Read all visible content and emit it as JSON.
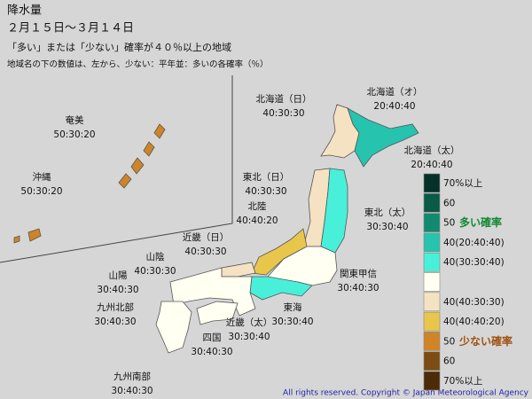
{
  "header": {
    "title": "降水量",
    "period": "２月１５日〜３月１４日",
    "subtitle": "「多い」または「少ない」確率が４０％以上の地域",
    "note": "地域名の下の数値は、左から、少ない：平年並：多いの各確率（％）"
  },
  "regions": [
    {
      "name": "北海道（日）",
      "probs": "40:30:30"
    },
    {
      "name": "北海道（オ）",
      "probs": "20:40:40"
    },
    {
      "name": "北海道（太）",
      "probs": "20:40:40"
    },
    {
      "name": "東北（日）",
      "probs": "40:30:30"
    },
    {
      "name": "北陸",
      "probs": "40:40:20"
    },
    {
      "name": "東北（太）",
      "probs": "30:30:40"
    },
    {
      "name": "近畿（日）",
      "probs": "40:30:30"
    },
    {
      "name": "山陰",
      "probs": "40:30:30"
    },
    {
      "name": "関東甲信",
      "probs": "30:40:30"
    },
    {
      "name": "山陽",
      "probs": "30:40:30"
    },
    {
      "name": "東海",
      "probs": "30:30:40"
    },
    {
      "name": "九州北部",
      "probs": "30:40:30"
    },
    {
      "name": "近畿（太）",
      "probs": "30:30:40"
    },
    {
      "name": "四国",
      "probs": "30:40:30"
    },
    {
      "name": "九州南部",
      "probs": "30:40:30"
    },
    {
      "name": "奄美",
      "probs": "50:30:20"
    },
    {
      "name": "沖縄",
      "probs": "50:30:20"
    }
  ],
  "legend": {
    "more_label": "多い確率",
    "less_label": "少ない確率",
    "items": [
      {
        "label": "70%以上",
        "color": "#06302a"
      },
      {
        "label": "60",
        "color": "#0a5a48"
      },
      {
        "label": "50",
        "color": "#128a6e"
      },
      {
        "label": "40(20:40:40)",
        "color": "#26c4ae"
      },
      {
        "label": "40(30:30:40)",
        "color": "#48f0da"
      },
      {
        "label": null,
        "color": "#fffff2"
      },
      {
        "label": "40(40:30:30)",
        "color": "#f4e2c2"
      },
      {
        "label": "40(40:40:20)",
        "color": "#e8c64c"
      },
      {
        "label": "50",
        "color": "#cf8428"
      },
      {
        "label": "60",
        "color": "#7c4c12"
      },
      {
        "label": "70%以上",
        "color": "#4c2c08"
      }
    ]
  },
  "footer": "All rights reserved. Copyright © Japan Meteorological Agency"
}
